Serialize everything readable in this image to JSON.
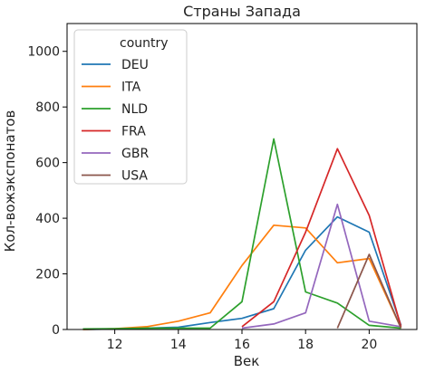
{
  "chart_data": {
    "type": "line",
    "title": "Страны Запада",
    "xlabel": "Век",
    "ylabel": "Кол-вожэкспонатов",
    "xlim": [
      10.5,
      21.5
    ],
    "ylim": [
      0,
      1100
    ],
    "xticks": [
      12,
      14,
      16,
      18,
      20
    ],
    "yticks": [
      0,
      200,
      400,
      600,
      800,
      1000
    ],
    "legend": {
      "title": "country",
      "position": "top-left"
    },
    "grid": false,
    "series": [
      {
        "name": "DEU",
        "color": "#1f77b4",
        "x": [
          11,
          12,
          13,
          14,
          15,
          16,
          17,
          18,
          19,
          20,
          21
        ],
        "y": [
          0,
          2,
          5,
          8,
          25,
          40,
          75,
          285,
          405,
          350,
          15
        ]
      },
      {
        "name": "ITA",
        "color": "#ff7f0e",
        "x": [
          11,
          12,
          13,
          14,
          15,
          16,
          17,
          18,
          19,
          20,
          21
        ],
        "y": [
          0,
          3,
          10,
          30,
          60,
          230,
          375,
          365,
          240,
          255,
          5
        ]
      },
      {
        "name": "NLD",
        "color": "#2ca02c",
        "x": [
          11,
          12,
          13,
          14,
          15,
          16,
          17,
          18,
          19,
          20,
          21
        ],
        "y": [
          2,
          3,
          5,
          5,
          5,
          100,
          685,
          135,
          95,
          15,
          5
        ]
      },
      {
        "name": "FRA",
        "color": "#d62728",
        "x": [
          16,
          17,
          18,
          19,
          20,
          21
        ],
        "y": [
          10,
          100,
          350,
          650,
          410,
          10
        ]
      },
      {
        "name": "GBR",
        "color": "#9467bd",
        "x": [
          16,
          17,
          18,
          19,
          20,
          21
        ],
        "y": [
          5,
          20,
          60,
          450,
          30,
          10
        ]
      },
      {
        "name": "USA",
        "color": "#8c564b",
        "x": [
          19,
          20,
          21
        ],
        "y": [
          5,
          270,
          5
        ]
      }
    ]
  }
}
